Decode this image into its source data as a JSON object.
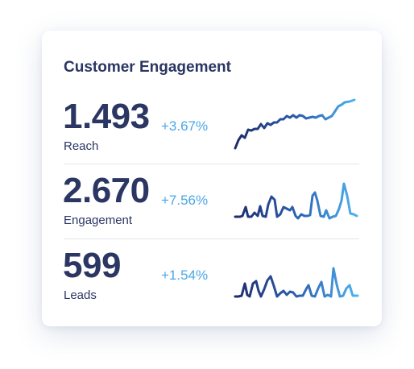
{
  "card": {
    "title": "Customer Engagement"
  },
  "metrics": [
    {
      "value": "1.493",
      "label": "Reach",
      "change": "+3.67%"
    },
    {
      "value": "2.670",
      "label": "Engagement",
      "change": "+7.56%"
    },
    {
      "value": "599",
      "label": "Leads",
      "change": "+1.54%"
    }
  ],
  "colors": {
    "title": "#2b3663",
    "change": "#4aa8e6",
    "sparkline_start": "#1d2b6b",
    "sparkline_end": "#4db3f0"
  }
}
